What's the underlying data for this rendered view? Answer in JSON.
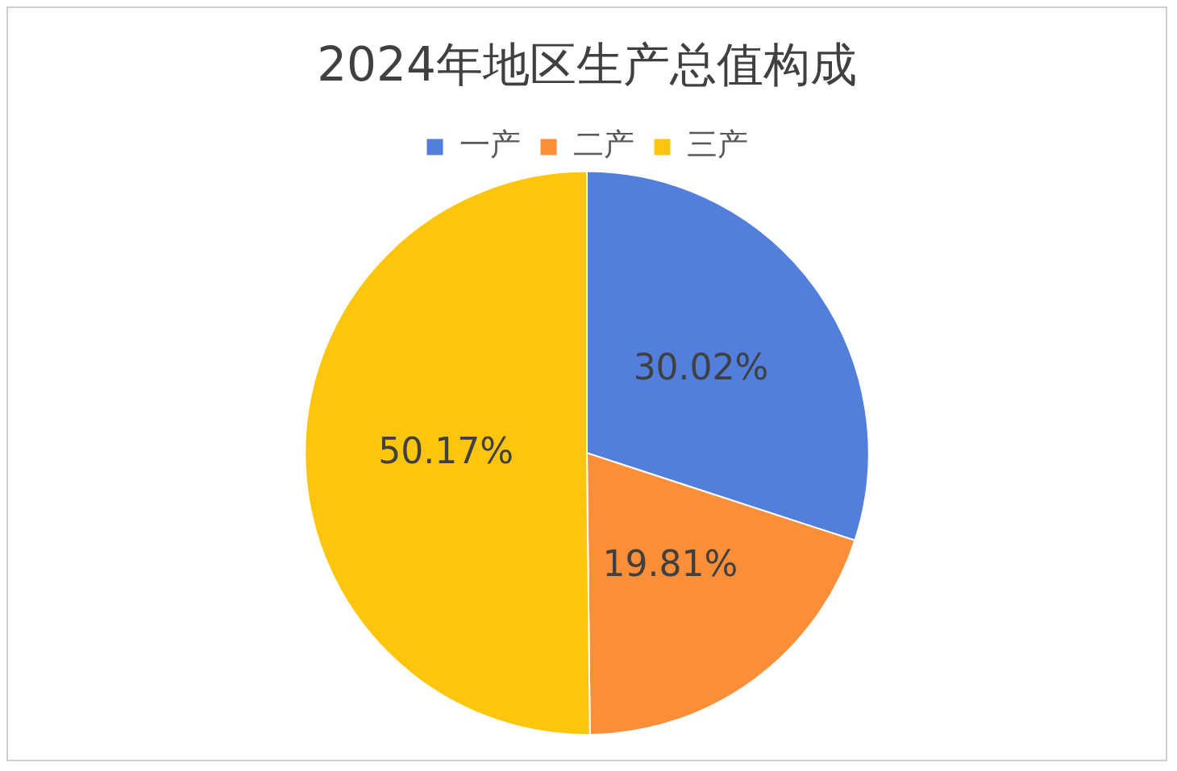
{
  "chart_data": {
    "type": "pie",
    "title": "2024年地区生产总值构成",
    "categories": [
      "一产",
      "二产",
      "三产"
    ],
    "values": [
      30.02,
      19.81,
      50.17
    ],
    "colors": [
      "#527fdb",
      "#fb8e38",
      "#fdc50b"
    ],
    "value_labels": [
      "30.02%",
      "19.81%",
      "50.17%"
    ],
    "legend": "top"
  }
}
